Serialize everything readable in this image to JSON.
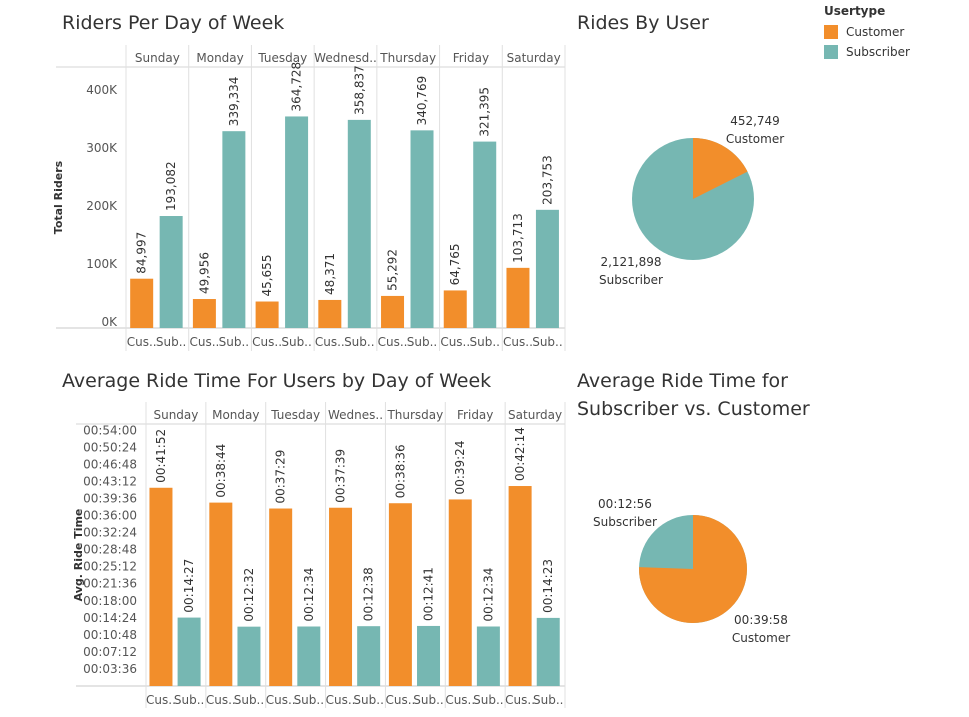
{
  "titles": {
    "riders": "Riders Per Day of Week",
    "rides_by_user": "Rides By User",
    "avg_time": "Average Ride Time For Users by Day of Week",
    "avg_time_pie_line1": "Average Ride Time for",
    "avg_time_pie_line2": "Subscriber vs. Customer"
  },
  "legend": {
    "title": "Usertype",
    "items": [
      {
        "label": "Customer",
        "color": "#f28e2b"
      },
      {
        "label": "Subscriber",
        "color": "#76b7b2"
      }
    ]
  },
  "colors": {
    "customer": "#f28e2b",
    "subscriber": "#76b7b2"
  },
  "chart_data": [
    {
      "type": "bar",
      "title": "Riders Per Day of Week",
      "ylabel": "Total Riders",
      "days": [
        "Sunday",
        "Monday",
        "Tuesday",
        "Wednesd..",
        "Thursday",
        "Friday",
        "Saturday"
      ],
      "sub_labels": [
        "Cus..",
        "Sub.."
      ],
      "yticks": [
        "0K",
        "100K",
        "200K",
        "300K",
        "400K"
      ],
      "ylim": [
        0,
        450000
      ],
      "series": [
        {
          "name": "Customer",
          "values": [
            84997,
            49956,
            45655,
            48371,
            55292,
            64765,
            103713
          ],
          "labels": [
            "84,997",
            "49,956",
            "45,655",
            "48,371",
            "55,292",
            "64,765",
            "103,713"
          ]
        },
        {
          "name": "Subscriber",
          "values": [
            193082,
            339334,
            364728,
            358837,
            340769,
            321395,
            203753
          ],
          "labels": [
            "193,082",
            "339,334",
            "364,728",
            "358,837",
            "340,769",
            "321,395",
            "203,753"
          ]
        }
      ]
    },
    {
      "type": "pie",
      "title": "Rides By User",
      "slices": [
        {
          "name": "Customer",
          "value": 452749,
          "label": "452,749"
        },
        {
          "name": "Subscriber",
          "value": 2121898,
          "label": "2,121,898"
        }
      ]
    },
    {
      "type": "bar",
      "title": "Average Ride Time For Users by Day of Week",
      "ylabel": "Avg. Ride Time",
      "days": [
        "Sunday",
        "Monday",
        "Tuesday",
        "Wednes..",
        "Thursday",
        "Friday",
        "Saturday"
      ],
      "sub_labels": [
        "Cus..",
        "Sub.."
      ],
      "yticks": [
        "00:03:36",
        "00:07:12",
        "00:10:48",
        "00:14:24",
        "00:18:00",
        "00:21:36",
        "00:25:12",
        "00:28:48",
        "00:32:24",
        "00:36:00",
        "00:39:36",
        "00:43:12",
        "00:46:48",
        "00:50:24",
        "00:54:00"
      ],
      "ytick_seconds": [
        216,
        432,
        648,
        864,
        1080,
        1296,
        1512,
        1728,
        1944,
        2160,
        2376,
        2592,
        2808,
        3024,
        3240
      ],
      "ylim_seconds": [
        0,
        3320
      ],
      "series": [
        {
          "name": "Customer",
          "values": [
            2512,
            2324,
            2249,
            2259,
            2316,
            2364,
            2534
          ],
          "labels": [
            "00:41:52",
            "00:38:44",
            "00:37:29",
            "00:37:39",
            "00:38:36",
            "00:39:24",
            "00:42:14"
          ]
        },
        {
          "name": "Subscriber",
          "values": [
            867,
            752,
            754,
            758,
            761,
            754,
            863
          ],
          "labels": [
            "00:14:27",
            "00:12:32",
            "00:12:34",
            "00:12:38",
            "00:12:41",
            "00:12:34",
            "00:14:23"
          ]
        }
      ]
    },
    {
      "type": "pie",
      "title": "Average Ride Time for Subscriber vs. Customer",
      "slices": [
        {
          "name": "Customer",
          "value": 2398,
          "label": "00:39:58"
        },
        {
          "name": "Subscriber",
          "value": 776,
          "label": "00:12:56"
        }
      ]
    }
  ]
}
